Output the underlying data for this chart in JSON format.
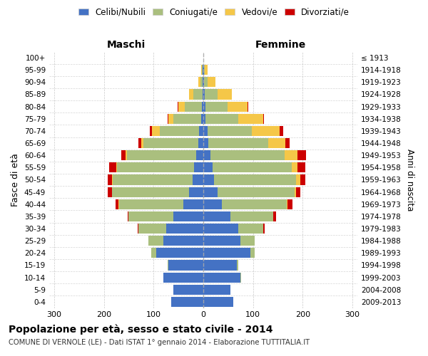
{
  "age_groups": [
    "0-4",
    "5-9",
    "10-14",
    "15-19",
    "20-24",
    "25-29",
    "30-34",
    "35-39",
    "40-44",
    "45-49",
    "50-54",
    "55-59",
    "60-64",
    "65-69",
    "70-74",
    "75-79",
    "80-84",
    "85-89",
    "90-94",
    "95-99",
    "100+"
  ],
  "birth_years": [
    "2009-2013",
    "2004-2008",
    "1999-2003",
    "1994-1998",
    "1989-1993",
    "1984-1988",
    "1979-1983",
    "1974-1978",
    "1969-1973",
    "1964-1968",
    "1959-1963",
    "1954-1958",
    "1949-1953",
    "1944-1948",
    "1939-1943",
    "1934-1938",
    "1929-1933",
    "1924-1928",
    "1919-1923",
    "1914-1918",
    "≤ 1913"
  ],
  "maschi": {
    "celibi": [
      65,
      60,
      80,
      70,
      95,
      80,
      75,
      60,
      40,
      28,
      22,
      18,
      14,
      10,
      8,
      5,
      3,
      2,
      1,
      1,
      0
    ],
    "coniugati": [
      0,
      0,
      1,
      2,
      10,
      30,
      55,
      90,
      130,
      155,
      160,
      155,
      140,
      110,
      80,
      55,
      35,
      18,
      5,
      2,
      0
    ],
    "vedovi": [
      0,
      0,
      0,
      0,
      0,
      0,
      0,
      0,
      1,
      1,
      2,
      2,
      3,
      5,
      15,
      10,
      12,
      8,
      4,
      1,
      0
    ],
    "divorziati": [
      0,
      0,
      0,
      0,
      0,
      1,
      2,
      2,
      5,
      8,
      8,
      15,
      8,
      5,
      5,
      2,
      1,
      0,
      0,
      0,
      0
    ]
  },
  "femmine": {
    "nubili": [
      60,
      55,
      75,
      68,
      95,
      75,
      70,
      55,
      38,
      28,
      22,
      18,
      14,
      10,
      8,
      5,
      4,
      3,
      1,
      1,
      0
    ],
    "coniugate": [
      0,
      0,
      1,
      2,
      8,
      28,
      50,
      85,
      130,
      155,
      165,
      160,
      150,
      120,
      90,
      65,
      45,
      25,
      8,
      2,
      0
    ],
    "vedove": [
      0,
      0,
      0,
      0,
      0,
      0,
      0,
      1,
      2,
      4,
      8,
      12,
      25,
      35,
      55,
      50,
      40,
      30,
      15,
      5,
      0
    ],
    "divorziate": [
      0,
      0,
      0,
      0,
      0,
      1,
      3,
      5,
      10,
      8,
      10,
      15,
      18,
      8,
      8,
      2,
      1,
      0,
      0,
      0,
      0
    ]
  },
  "colors": {
    "celibi_nubili": "#4472C4",
    "coniugati": "#AABF7E",
    "vedovi": "#F5C748",
    "divorziati": "#CC0000"
  },
  "title": "Popolazione per età, sesso e stato civile - 2014",
  "subtitle": "COMUNE DI VERNOLE (LE) - Dati ISTAT 1° gennaio 2014 - Elaborazione TUTTITALIA.IT",
  "xlabel_maschi": "Maschi",
  "xlabel_femmine": "Femmine",
  "ylabel": "Fasce di età",
  "ylabel_right": "Anni di nascita",
  "xlim": 310,
  "legend_labels": [
    "Celibi/Nubili",
    "Coniugati/e",
    "Vedovi/e",
    "Divorziati/e"
  ],
  "background_color": "#ffffff",
  "grid_color": "#bbbbbb"
}
